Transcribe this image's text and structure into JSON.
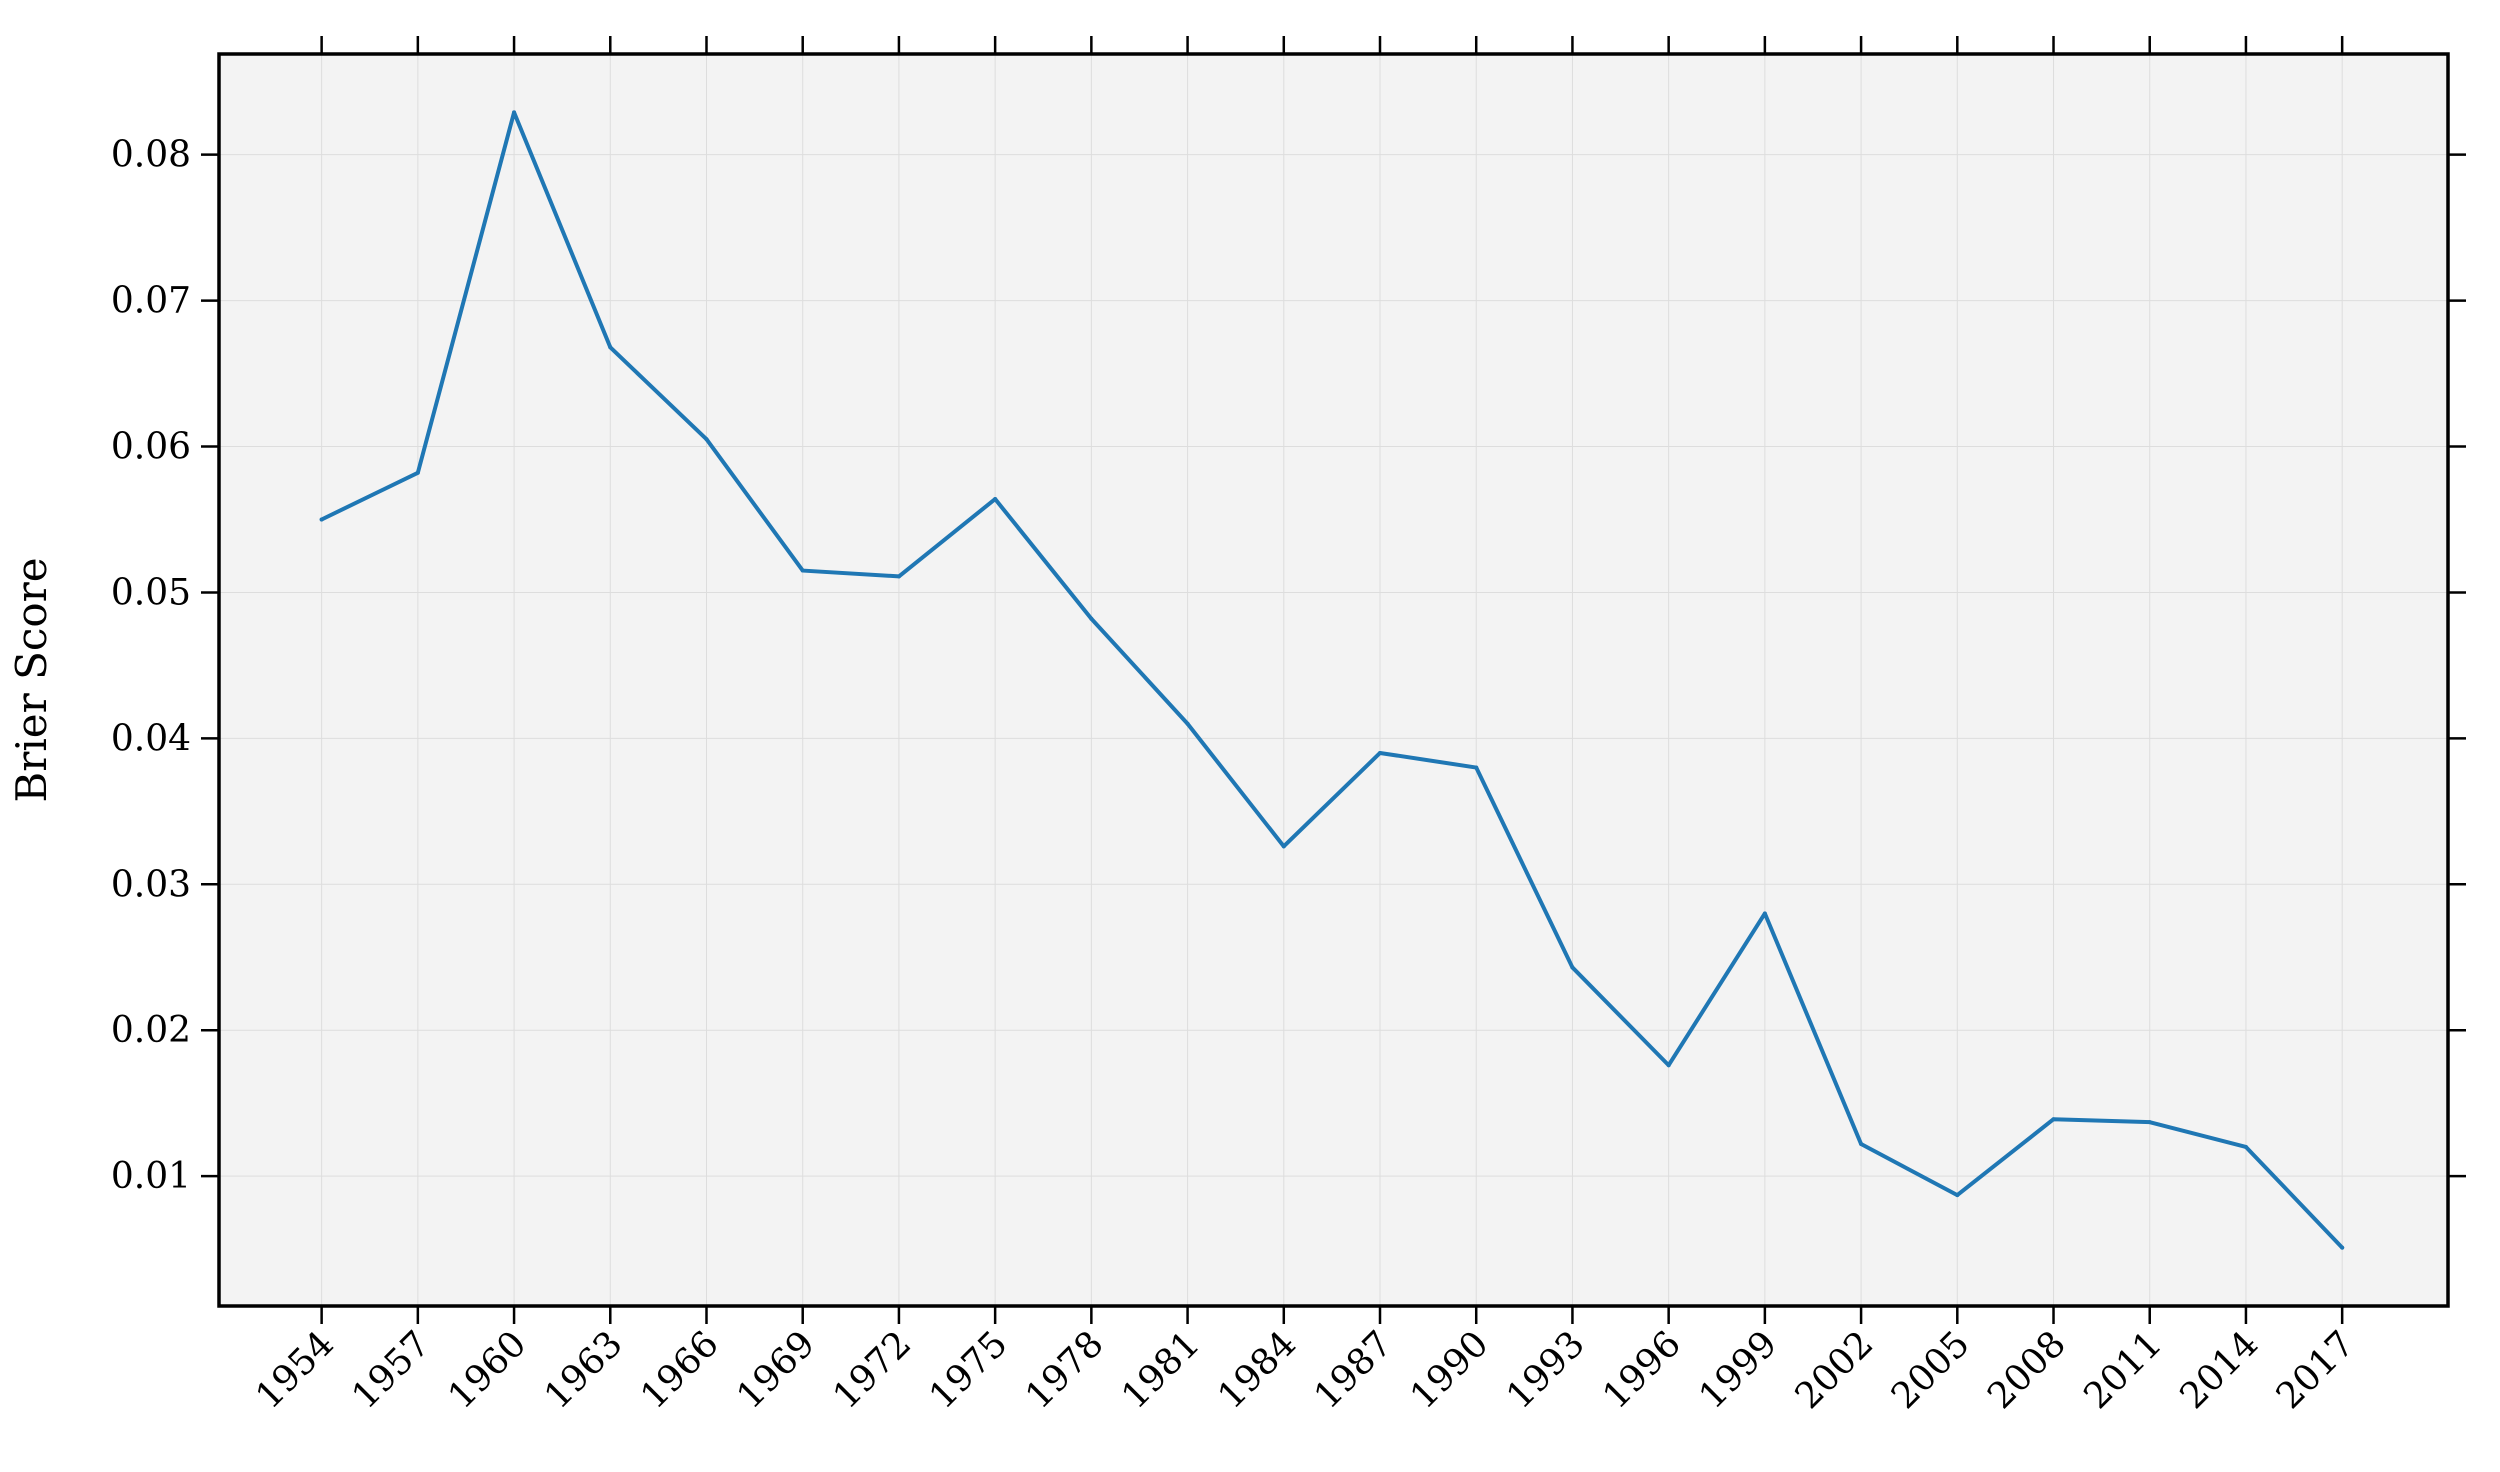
{
  "chart_data": {
    "type": "line",
    "title": "",
    "xlabel": "",
    "ylabel": "Brier Score",
    "x": [
      1954,
      1957,
      1960,
      1963,
      1966,
      1969,
      1972,
      1975,
      1978,
      1981,
      1984,
      1987,
      1990,
      1993,
      1996,
      1999,
      2002,
      2005,
      2008,
      2011,
      2014,
      2017
    ],
    "series": [
      {
        "values": [
          0.055,
          0.0582,
          0.0829,
          0.0668,
          0.0605,
          0.0515,
          0.0511,
          0.0564,
          0.0482,
          0.041,
          0.0326,
          0.039,
          0.038,
          0.0243,
          0.0176,
          0.028,
          0.0122,
          0.0087,
          0.0139,
          0.0137,
          0.012,
          0.0051
        ],
        "color": "#1f77b4"
      }
    ],
    "xticks": [
      "1954",
      "1957",
      "1960",
      "1963",
      "1966",
      "1969",
      "1972",
      "1975",
      "1978",
      "1981",
      "1984",
      "1987",
      "1990",
      "1993",
      "1996",
      "1999",
      "2002",
      "2005",
      "2008",
      "2011",
      "2014",
      "2017"
    ],
    "yticks": [
      "0.01",
      "0.02",
      "0.03",
      "0.04",
      "0.05",
      "0.06",
      "0.07",
      "0.08"
    ],
    "xlim": [
      1950.8,
      2020.3
    ],
    "ylim": [
      0.0011,
      0.0869
    ],
    "grid": true,
    "legend": "none",
    "plot_background": "#f3f3f3",
    "grid_color": "#dddddd"
  }
}
